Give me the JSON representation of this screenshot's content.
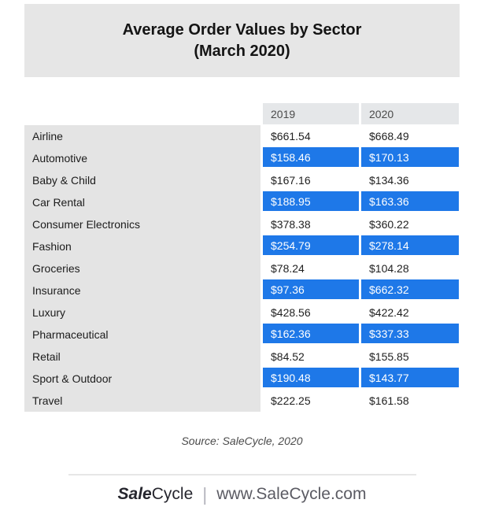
{
  "title": {
    "line1": "Average Order Values by Sector",
    "line2": "(March 2020)"
  },
  "chart_data": {
    "type": "table",
    "title": "Average Order Values by Sector (March 2020)",
    "columns": [
      "",
      "2019",
      "2020"
    ],
    "rows": [
      {
        "sector": "Airline",
        "v2019": "$661.54",
        "v2020": "$668.49",
        "highlighted": false
      },
      {
        "sector": "Automotive",
        "v2019": "$158.46",
        "v2020": "$170.13",
        "highlighted": true
      },
      {
        "sector": "Baby & Child",
        "v2019": "$167.16",
        "v2020": "$134.36",
        "highlighted": false
      },
      {
        "sector": "Car Rental",
        "v2019": "$188.95",
        "v2020": "$163.36",
        "highlighted": true
      },
      {
        "sector": "Consumer Electronics",
        "v2019": "$378.38",
        "v2020": "$360.22",
        "highlighted": false
      },
      {
        "sector": "Fashion",
        "v2019": "$254.79",
        "v2020": "$278.14",
        "highlighted": true
      },
      {
        "sector": "Groceries",
        "v2019": "$78.24",
        "v2020": "$104.28",
        "highlighted": false
      },
      {
        "sector": "Insurance",
        "v2019": "$97.36",
        "v2020": "$662.32",
        "highlighted": true
      },
      {
        "sector": "Luxury",
        "v2019": "$428.56",
        "v2020": "$422.42",
        "highlighted": false
      },
      {
        "sector": "Pharmaceutical",
        "v2019": "$162.36",
        "v2020": "$337.33",
        "highlighted": true
      },
      {
        "sector": "Retail",
        "v2019": "$84.52",
        "v2020": "$155.85",
        "highlighted": false
      },
      {
        "sector": "Sport & Outdoor",
        "v2019": "$190.48",
        "v2020": "$143.77",
        "highlighted": true
      },
      {
        "sector": "Travel",
        "v2019": "$222.25",
        "v2020": "$161.58",
        "highlighted": false
      }
    ],
    "legend_position": "none",
    "grid": false
  },
  "footer": {
    "source": "Source: SaleCycle, 2020",
    "logo_sale": "Sale",
    "logo_cycle": "Cycle",
    "divider": "|",
    "website": "www.SaleCycle.com"
  },
  "colors": {
    "highlight_blue": "#1e78e8",
    "title_box_gray": "#e6e6e6",
    "sector_column_gray": "#e4e4e4",
    "header_cell_gray": "#e5e7e9"
  }
}
